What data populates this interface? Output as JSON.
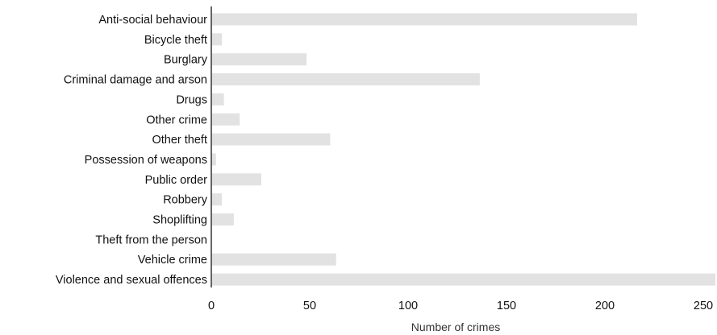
{
  "chart_data": {
    "type": "bar",
    "orientation": "horizontal",
    "categories": [
      "Anti-social behaviour",
      "Bicycle theft",
      "Burglary",
      "Criminal damage and arson",
      "Drugs",
      "Other crime",
      "Other theft",
      "Possession of weapons",
      "Public order",
      "Robbery",
      "Shoplifting",
      "Theft from the person",
      "Vehicle crime",
      "Violence and sexual offences"
    ],
    "values": [
      216,
      5,
      48,
      136,
      6,
      14,
      60,
      2,
      25,
      5,
      11,
      0,
      63,
      256
    ],
    "xlabel": "Number of crimes",
    "xlim": [
      0,
      250
    ],
    "xticks": [
      "0",
      "50",
      "100",
      "150",
      "200",
      "250"
    ],
    "grid": false,
    "bar_color": "#e2e2e2",
    "axis_color": "#333333"
  }
}
